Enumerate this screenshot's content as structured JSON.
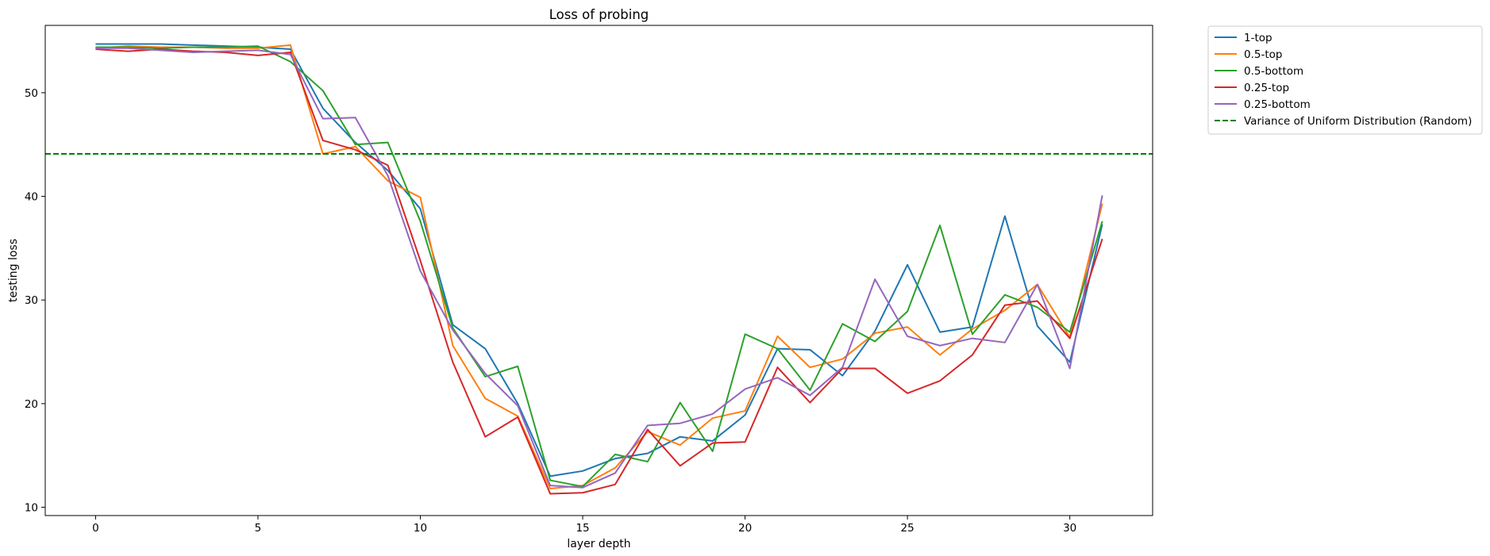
{
  "chart_data": {
    "type": "line",
    "title": "Loss of probing",
    "xlabel": "layer depth",
    "ylabel": "testing loss",
    "xlim": [
      -1.55,
      32.55
    ],
    "ylim": [
      9.2,
      56.5
    ],
    "xticks": [
      0,
      5,
      10,
      15,
      20,
      25,
      30
    ],
    "yticks": [
      10,
      20,
      30,
      40,
      50
    ],
    "grid": false,
    "legend_position": "outside-top-right",
    "x": [
      0,
      1,
      2,
      3,
      4,
      5,
      6,
      7,
      8,
      9,
      10,
      11,
      12,
      13,
      14,
      15,
      16,
      17,
      18,
      19,
      20,
      21,
      22,
      23,
      24,
      25,
      26,
      27,
      28,
      29,
      30,
      31
    ],
    "series": [
      {
        "name": "1-top",
        "color": "#1f77b4",
        "style": "solid",
        "values": [
          54.7,
          54.7,
          54.7,
          54.6,
          54.5,
          54.4,
          54.2,
          48.5,
          45.2,
          42.5,
          38.8,
          27.6,
          25.3,
          20.0,
          13.0,
          13.5,
          14.7,
          15.2,
          16.8,
          16.4,
          18.9,
          25.3,
          25.2,
          22.7,
          27.0,
          33.4,
          26.9,
          27.4,
          38.1,
          27.5,
          24.0,
          37.3
        ]
      },
      {
        "name": "0.5-top",
        "color": "#ff7f0e",
        "style": "solid",
        "values": [
          54.3,
          54.5,
          54.4,
          54.4,
          54.3,
          54.3,
          54.6,
          44.1,
          44.8,
          41.5,
          39.9,
          25.6,
          20.5,
          18.8,
          11.8,
          12.1,
          13.8,
          17.3,
          16.0,
          18.6,
          19.3,
          26.5,
          23.5,
          24.3,
          26.8,
          27.4,
          24.7,
          27.2,
          29.0,
          31.5,
          26.4,
          39.3
        ]
      },
      {
        "name": "0.5-bottom",
        "color": "#2ca02c",
        "style": "solid",
        "values": [
          54.4,
          54.4,
          54.3,
          54.4,
          54.4,
          54.5,
          53.0,
          50.2,
          45.0,
          45.2,
          37.6,
          27.3,
          22.6,
          23.6,
          12.6,
          12.0,
          15.1,
          14.4,
          20.1,
          15.4,
          26.7,
          25.3,
          21.3,
          27.7,
          26.0,
          28.9,
          37.2,
          26.7,
          30.5,
          29.3,
          26.9,
          37.6
        ]
      },
      {
        "name": "0.25-top",
        "color": "#d62728",
        "style": "solid",
        "values": [
          54.2,
          54.0,
          54.2,
          54.0,
          53.9,
          53.6,
          53.9,
          45.4,
          44.5,
          43.0,
          33.8,
          24.0,
          16.8,
          18.7,
          11.3,
          11.4,
          12.2,
          17.5,
          14.0,
          16.2,
          16.3,
          23.5,
          20.1,
          23.4,
          23.4,
          21.0,
          22.2,
          24.7,
          29.5,
          29.9,
          26.3,
          35.9
        ]
      },
      {
        "name": "0.25-bottom",
        "color": "#9467bd",
        "style": "solid",
        "values": [
          54.3,
          54.3,
          54.1,
          53.9,
          54.0,
          54.1,
          53.7,
          47.5,
          47.6,
          42.0,
          32.8,
          27.1,
          22.9,
          19.8,
          12.1,
          11.9,
          13.3,
          17.9,
          18.1,
          19.0,
          21.4,
          22.5,
          20.8,
          23.5,
          32.0,
          26.5,
          25.6,
          26.3,
          25.9,
          31.5,
          23.4,
          40.1
        ]
      }
    ],
    "reference_line": {
      "name": "Variance of Uniform Distribution (Random)",
      "color": "#008000",
      "style": "dashed",
      "y": 44.1
    }
  }
}
